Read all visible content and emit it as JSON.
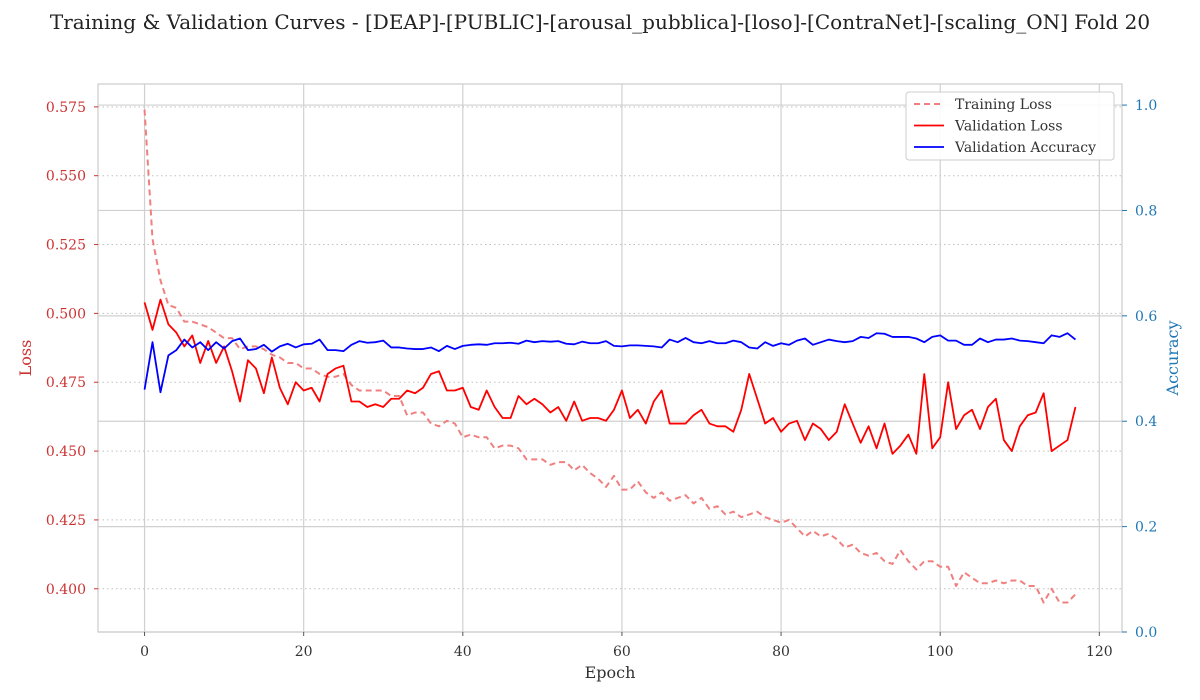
{
  "chart_data": {
    "type": "line",
    "title": "Training & Validation Curves - [DEAP]-[PUBLIC]-[arousal_pubblica]-[loso]-[ContraNet]-[scaling_ON] Fold 20",
    "xlabel": "Epoch",
    "ylabel_left": "Loss",
    "ylabel_right": "Accuracy",
    "xlim": [
      -5.85,
      122.85
    ],
    "ylim_left": [
      0.3843,
      0.5833
    ],
    "ylim_right": [
      0.0,
      1.04
    ],
    "x_ticks": [
      0,
      20,
      40,
      60,
      80,
      100,
      120
    ],
    "y_left_ticks": [
      0.4,
      0.425,
      0.45,
      0.475,
      0.5,
      0.525,
      0.55,
      0.575
    ],
    "y_right_ticks": [
      0.0,
      0.2,
      0.4,
      0.6,
      0.8,
      1.0
    ],
    "grid": true,
    "legend_position": "top-right",
    "colors": {
      "training_loss": "#f08080",
      "validation_loss": "#ff0000",
      "validation_accuracy": "#0000ff",
      "left_axis": "#cc3333",
      "right_axis": "#1f77b4"
    },
    "series": [
      {
        "name": "Training Loss",
        "axis": "left",
        "style": "dashed",
        "values": [
          0.574,
          0.527,
          0.512,
          0.503,
          0.502,
          0.497,
          0.497,
          0.496,
          0.495,
          0.493,
          0.491,
          0.491,
          0.487,
          0.488,
          0.488,
          0.487,
          0.485,
          0.484,
          0.482,
          0.482,
          0.48,
          0.48,
          0.478,
          0.477,
          0.477,
          0.478,
          0.474,
          0.472,
          0.472,
          0.472,
          0.472,
          0.47,
          0.47,
          0.463,
          0.464,
          0.464,
          0.46,
          0.459,
          0.461,
          0.46,
          0.455,
          0.456,
          0.455,
          0.455,
          0.451,
          0.452,
          0.452,
          0.451,
          0.447,
          0.447,
          0.447,
          0.445,
          0.446,
          0.446,
          0.443,
          0.445,
          0.442,
          0.44,
          0.437,
          0.441,
          0.436,
          0.436,
          0.439,
          0.435,
          0.433,
          0.435,
          0.432,
          0.433,
          0.434,
          0.431,
          0.433,
          0.429,
          0.43,
          0.427,
          0.428,
          0.426,
          0.427,
          0.428,
          0.426,
          0.425,
          0.424,
          0.425,
          0.422,
          0.419,
          0.421,
          0.419,
          0.42,
          0.418,
          0.415,
          0.416,
          0.413,
          0.412,
          0.413,
          0.41,
          0.409,
          0.414,
          0.41,
          0.407,
          0.41,
          0.41,
          0.408,
          0.408,
          0.401,
          0.406,
          0.404,
          0.402,
          0.402,
          0.403,
          0.402,
          0.403,
          0.403,
          0.401,
          0.401,
          0.395,
          0.4,
          0.395,
          0.395,
          0.398
        ]
      },
      {
        "name": "Validation Loss",
        "axis": "left",
        "style": "solid",
        "values": [
          0.504,
          0.494,
          0.505,
          0.496,
          0.493,
          0.488,
          0.492,
          0.482,
          0.49,
          0.482,
          0.488,
          0.479,
          0.468,
          0.483,
          0.48,
          0.471,
          0.484,
          0.473,
          0.467,
          0.475,
          0.472,
          0.473,
          0.468,
          0.478,
          0.48,
          0.481,
          0.468,
          0.468,
          0.466,
          0.467,
          0.466,
          0.469,
          0.469,
          0.472,
          0.471,
          0.473,
          0.478,
          0.479,
          0.472,
          0.472,
          0.473,
          0.466,
          0.465,
          0.472,
          0.466,
          0.462,
          0.462,
          0.47,
          0.467,
          0.469,
          0.467,
          0.464,
          0.466,
          0.461,
          0.468,
          0.461,
          0.462,
          0.462,
          0.461,
          0.465,
          0.472,
          0.462,
          0.465,
          0.46,
          0.468,
          0.472,
          0.46,
          0.46,
          0.46,
          0.463,
          0.465,
          0.46,
          0.459,
          0.459,
          0.457,
          0.465,
          0.478,
          0.469,
          0.46,
          0.462,
          0.457,
          0.46,
          0.461,
          0.454,
          0.46,
          0.458,
          0.454,
          0.457,
          0.467,
          0.46,
          0.453,
          0.459,
          0.451,
          0.46,
          0.449,
          0.452,
          0.456,
          0.449,
          0.478,
          0.451,
          0.455,
          0.475,
          0.458,
          0.463,
          0.465,
          0.458,
          0.466,
          0.469,
          0.454,
          0.45,
          0.459,
          0.463,
          0.464,
          0.471,
          0.45,
          0.452,
          0.454,
          0.466
        ]
      },
      {
        "name": "Validation Accuracy",
        "axis": "right",
        "style": "solid",
        "values": [
          0.46,
          0.55,
          0.455,
          0.525,
          0.535,
          0.555,
          0.54,
          0.55,
          0.535,
          0.55,
          0.538,
          0.552,
          0.557,
          0.535,
          0.537,
          0.545,
          0.532,
          0.542,
          0.547,
          0.54,
          0.546,
          0.547,
          0.555,
          0.535,
          0.535,
          0.533,
          0.545,
          0.552,
          0.549,
          0.55,
          0.553,
          0.54,
          0.54,
          0.538,
          0.537,
          0.537,
          0.54,
          0.533,
          0.543,
          0.537,
          0.543,
          0.545,
          0.546,
          0.545,
          0.548,
          0.548,
          0.549,
          0.547,
          0.553,
          0.55,
          0.552,
          0.551,
          0.552,
          0.547,
          0.546,
          0.551,
          0.548,
          0.548,
          0.552,
          0.543,
          0.542,
          0.544,
          0.544,
          0.543,
          0.542,
          0.54,
          0.555,
          0.55,
          0.558,
          0.55,
          0.548,
          0.552,
          0.548,
          0.548,
          0.553,
          0.55,
          0.54,
          0.538,
          0.55,
          0.543,
          0.548,
          0.545,
          0.553,
          0.557,
          0.545,
          0.55,
          0.555,
          0.552,
          0.55,
          0.552,
          0.56,
          0.558,
          0.567,
          0.566,
          0.56,
          0.56,
          0.56,
          0.557,
          0.55,
          0.56,
          0.563,
          0.553,
          0.553,
          0.545,
          0.545,
          0.557,
          0.55,
          0.555,
          0.555,
          0.557,
          0.553,
          0.552,
          0.55,
          0.548,
          0.563,
          0.56,
          0.567,
          0.555
        ]
      }
    ]
  }
}
